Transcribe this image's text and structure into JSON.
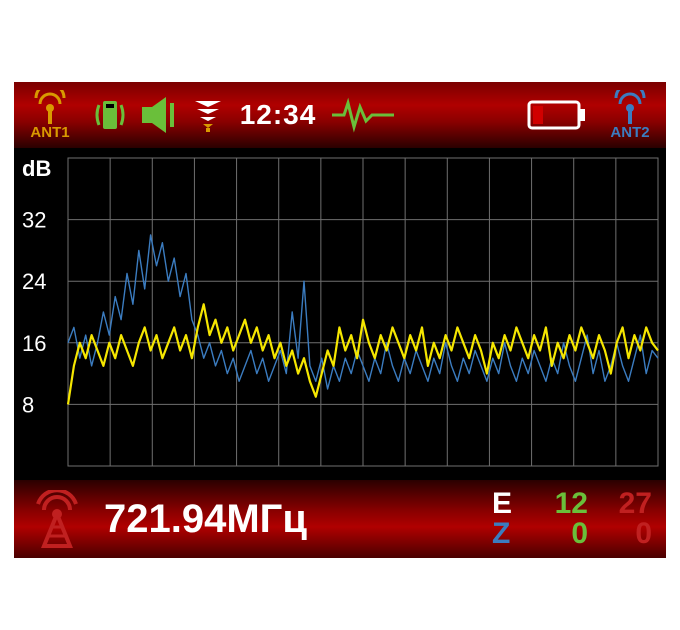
{
  "device": {
    "bg": "#000000"
  },
  "topbar": {
    "gradient": [
      "#7a0000",
      "#b00000",
      "#8a0000",
      "#2a0000"
    ],
    "ant1": {
      "label": "ANT1",
      "color": "#d99a00"
    },
    "ant2": {
      "label": "ANT2",
      "color": "#3b7cc0"
    },
    "clock": "12:34",
    "icon_green": "#6abf3a",
    "icon_white": "#ffffff",
    "battery_border": "#ffffff",
    "battery_low": "#d00000"
  },
  "chart": {
    "type": "line",
    "ylabel": "dB",
    "ylim": [
      0,
      40
    ],
    "ytick_values": [
      8,
      16,
      24,
      32
    ],
    "ytick_labels": [
      "8",
      "16",
      "24",
      "32"
    ],
    "xlim": [
      0,
      600
    ],
    "x_gridlines": 14,
    "grid_color": "#6f6f6f",
    "background": "#000000",
    "axis_color": "#ffffff",
    "label_fontsize": 22,
    "series": [
      {
        "name": "ant2",
        "color": "#3b7cc0",
        "stroke_width": 1.4,
        "data": [
          [
            0,
            16
          ],
          [
            6,
            18
          ],
          [
            12,
            14
          ],
          [
            18,
            17
          ],
          [
            24,
            13
          ],
          [
            30,
            16
          ],
          [
            36,
            20
          ],
          [
            42,
            17
          ],
          [
            48,
            22
          ],
          [
            54,
            19
          ],
          [
            60,
            25
          ],
          [
            66,
            21
          ],
          [
            72,
            28
          ],
          [
            78,
            23
          ],
          [
            84,
            30
          ],
          [
            90,
            26
          ],
          [
            96,
            29
          ],
          [
            102,
            24
          ],
          [
            108,
            27
          ],
          [
            114,
            22
          ],
          [
            120,
            25
          ],
          [
            126,
            19
          ],
          [
            132,
            17
          ],
          [
            138,
            14
          ],
          [
            144,
            16
          ],
          [
            150,
            13
          ],
          [
            156,
            15
          ],
          [
            162,
            12
          ],
          [
            168,
            14
          ],
          [
            174,
            11
          ],
          [
            180,
            13
          ],
          [
            186,
            15
          ],
          [
            192,
            12
          ],
          [
            198,
            14
          ],
          [
            204,
            11
          ],
          [
            210,
            13
          ],
          [
            216,
            15
          ],
          [
            222,
            12
          ],
          [
            228,
            20
          ],
          [
            234,
            14
          ],
          [
            240,
            24
          ],
          [
            246,
            13
          ],
          [
            252,
            11
          ],
          [
            258,
            14
          ],
          [
            264,
            10
          ],
          [
            270,
            13
          ],
          [
            276,
            11
          ],
          [
            282,
            14
          ],
          [
            288,
            12
          ],
          [
            294,
            15
          ],
          [
            300,
            13
          ],
          [
            306,
            11
          ],
          [
            312,
            14
          ],
          [
            318,
            12
          ],
          [
            324,
            16
          ],
          [
            330,
            13
          ],
          [
            336,
            11
          ],
          [
            342,
            14
          ],
          [
            348,
            12
          ],
          [
            354,
            15
          ],
          [
            360,
            13
          ],
          [
            366,
            11
          ],
          [
            372,
            14
          ],
          [
            378,
            12
          ],
          [
            384,
            16
          ],
          [
            390,
            13
          ],
          [
            396,
            11
          ],
          [
            402,
            14
          ],
          [
            408,
            12
          ],
          [
            414,
            15
          ],
          [
            420,
            13
          ],
          [
            426,
            11
          ],
          [
            432,
            14
          ],
          [
            438,
            12
          ],
          [
            444,
            16
          ],
          [
            450,
            13
          ],
          [
            456,
            11
          ],
          [
            462,
            14
          ],
          [
            468,
            12
          ],
          [
            474,
            15
          ],
          [
            480,
            13
          ],
          [
            486,
            11
          ],
          [
            492,
            14
          ],
          [
            498,
            12
          ],
          [
            504,
            16
          ],
          [
            510,
            13
          ],
          [
            516,
            11
          ],
          [
            522,
            14
          ],
          [
            528,
            17
          ],
          [
            534,
            12
          ],
          [
            540,
            15
          ],
          [
            546,
            11
          ],
          [
            552,
            13
          ],
          [
            558,
            16
          ],
          [
            564,
            13
          ],
          [
            570,
            11
          ],
          [
            576,
            14
          ],
          [
            582,
            17
          ],
          [
            588,
            12
          ],
          [
            594,
            15
          ],
          [
            600,
            14
          ]
        ]
      },
      {
        "name": "ant1",
        "color": "#f5e600",
        "stroke_width": 2.2,
        "data": [
          [
            0,
            8
          ],
          [
            6,
            13
          ],
          [
            12,
            16
          ],
          [
            18,
            14
          ],
          [
            24,
            17
          ],
          [
            30,
            15
          ],
          [
            36,
            13
          ],
          [
            42,
            16
          ],
          [
            48,
            14
          ],
          [
            54,
            17
          ],
          [
            60,
            15
          ],
          [
            66,
            13
          ],
          [
            72,
            16
          ],
          [
            78,
            18
          ],
          [
            84,
            15
          ],
          [
            90,
            17
          ],
          [
            96,
            14
          ],
          [
            102,
            16
          ],
          [
            108,
            18
          ],
          [
            114,
            15
          ],
          [
            120,
            17
          ],
          [
            126,
            14
          ],
          [
            132,
            18
          ],
          [
            138,
            21
          ],
          [
            144,
            17
          ],
          [
            150,
            19
          ],
          [
            156,
            16
          ],
          [
            162,
            18
          ],
          [
            168,
            15
          ],
          [
            174,
            17
          ],
          [
            180,
            19
          ],
          [
            186,
            16
          ],
          [
            192,
            18
          ],
          [
            198,
            15
          ],
          [
            204,
            17
          ],
          [
            210,
            14
          ],
          [
            216,
            16
          ],
          [
            222,
            13
          ],
          [
            228,
            15
          ],
          [
            234,
            12
          ],
          [
            240,
            14
          ],
          [
            246,
            11
          ],
          [
            252,
            9
          ],
          [
            258,
            12
          ],
          [
            264,
            15
          ],
          [
            270,
            13
          ],
          [
            276,
            18
          ],
          [
            282,
            15
          ],
          [
            288,
            17
          ],
          [
            294,
            14
          ],
          [
            300,
            19
          ],
          [
            306,
            16
          ],
          [
            312,
            14
          ],
          [
            318,
            17
          ],
          [
            324,
            15
          ],
          [
            330,
            18
          ],
          [
            336,
            16
          ],
          [
            342,
            14
          ],
          [
            348,
            17
          ],
          [
            354,
            15
          ],
          [
            360,
            18
          ],
          [
            366,
            13
          ],
          [
            372,
            16
          ],
          [
            378,
            14
          ],
          [
            384,
            17
          ],
          [
            390,
            15
          ],
          [
            396,
            18
          ],
          [
            402,
            16
          ],
          [
            408,
            14
          ],
          [
            414,
            17
          ],
          [
            420,
            15
          ],
          [
            426,
            12
          ],
          [
            432,
            16
          ],
          [
            438,
            14
          ],
          [
            444,
            17
          ],
          [
            450,
            15
          ],
          [
            456,
            18
          ],
          [
            462,
            16
          ],
          [
            468,
            14
          ],
          [
            474,
            17
          ],
          [
            480,
            15
          ],
          [
            486,
            18
          ],
          [
            492,
            13
          ],
          [
            498,
            16
          ],
          [
            504,
            14
          ],
          [
            510,
            17
          ],
          [
            516,
            15
          ],
          [
            522,
            18
          ],
          [
            528,
            16
          ],
          [
            534,
            14
          ],
          [
            540,
            17
          ],
          [
            546,
            15
          ],
          [
            552,
            12
          ],
          [
            558,
            16
          ],
          [
            564,
            18
          ],
          [
            570,
            14
          ],
          [
            576,
            17
          ],
          [
            582,
            15
          ],
          [
            588,
            18
          ],
          [
            594,
            16
          ],
          [
            600,
            15
          ]
        ]
      }
    ]
  },
  "bottombar": {
    "frequency": "721.94МГц",
    "tower_color": "#c02020",
    "stats": {
      "E": {
        "label": "E",
        "v1": "12",
        "v2": "27",
        "v1_color": "#6abf3a",
        "v2_color": "#c02020",
        "label_color": "#ffffff"
      },
      "Z": {
        "label": "Z",
        "v1": "0",
        "v2": "0",
        "v1_color": "#6abf3a",
        "v2_color": "#c02020",
        "label_color": "#3b7cc0"
      }
    }
  }
}
